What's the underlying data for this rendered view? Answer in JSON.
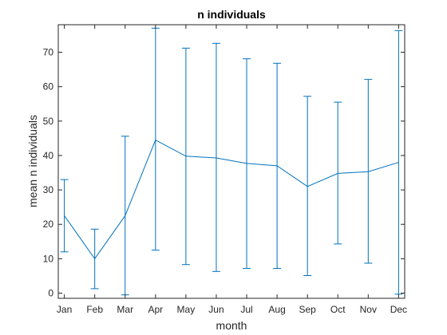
{
  "chart_data": {
    "type": "line",
    "title": "n individuals",
    "xlabel": "month",
    "ylabel": "mean n individuals",
    "categories": [
      "Jan",
      "Feb",
      "Mar",
      "Apr",
      "May",
      "Jun",
      "Jul",
      "Aug",
      "Sep",
      "Oct",
      "Nov",
      "Dec"
    ],
    "series": [
      {
        "values": [
          22.5,
          10,
          22.5,
          44.5,
          39.8,
          39.3,
          37.7,
          37.0,
          31.0,
          34.8,
          35.3,
          38.0
        ],
        "error_lower": [
          12.0,
          1.3,
          -0.5,
          12.5,
          8.3,
          6.3,
          7.2,
          7.2,
          5.1,
          14.3,
          8.7,
          -0.3
        ],
        "error_upper": [
          33.0,
          18.6,
          45.6,
          77.0,
          71.2,
          72.6,
          68.1,
          66.8,
          57.2,
          55.5,
          62.1,
          76.3
        ]
      }
    ],
    "ylim": [
      -1.5,
      78
    ],
    "yticks": [
      0,
      10,
      20,
      30,
      40,
      50,
      60,
      70
    ],
    "grid": false,
    "colors": {
      "line": "#0072bd",
      "axis": "#262626",
      "text": "#262626"
    }
  }
}
